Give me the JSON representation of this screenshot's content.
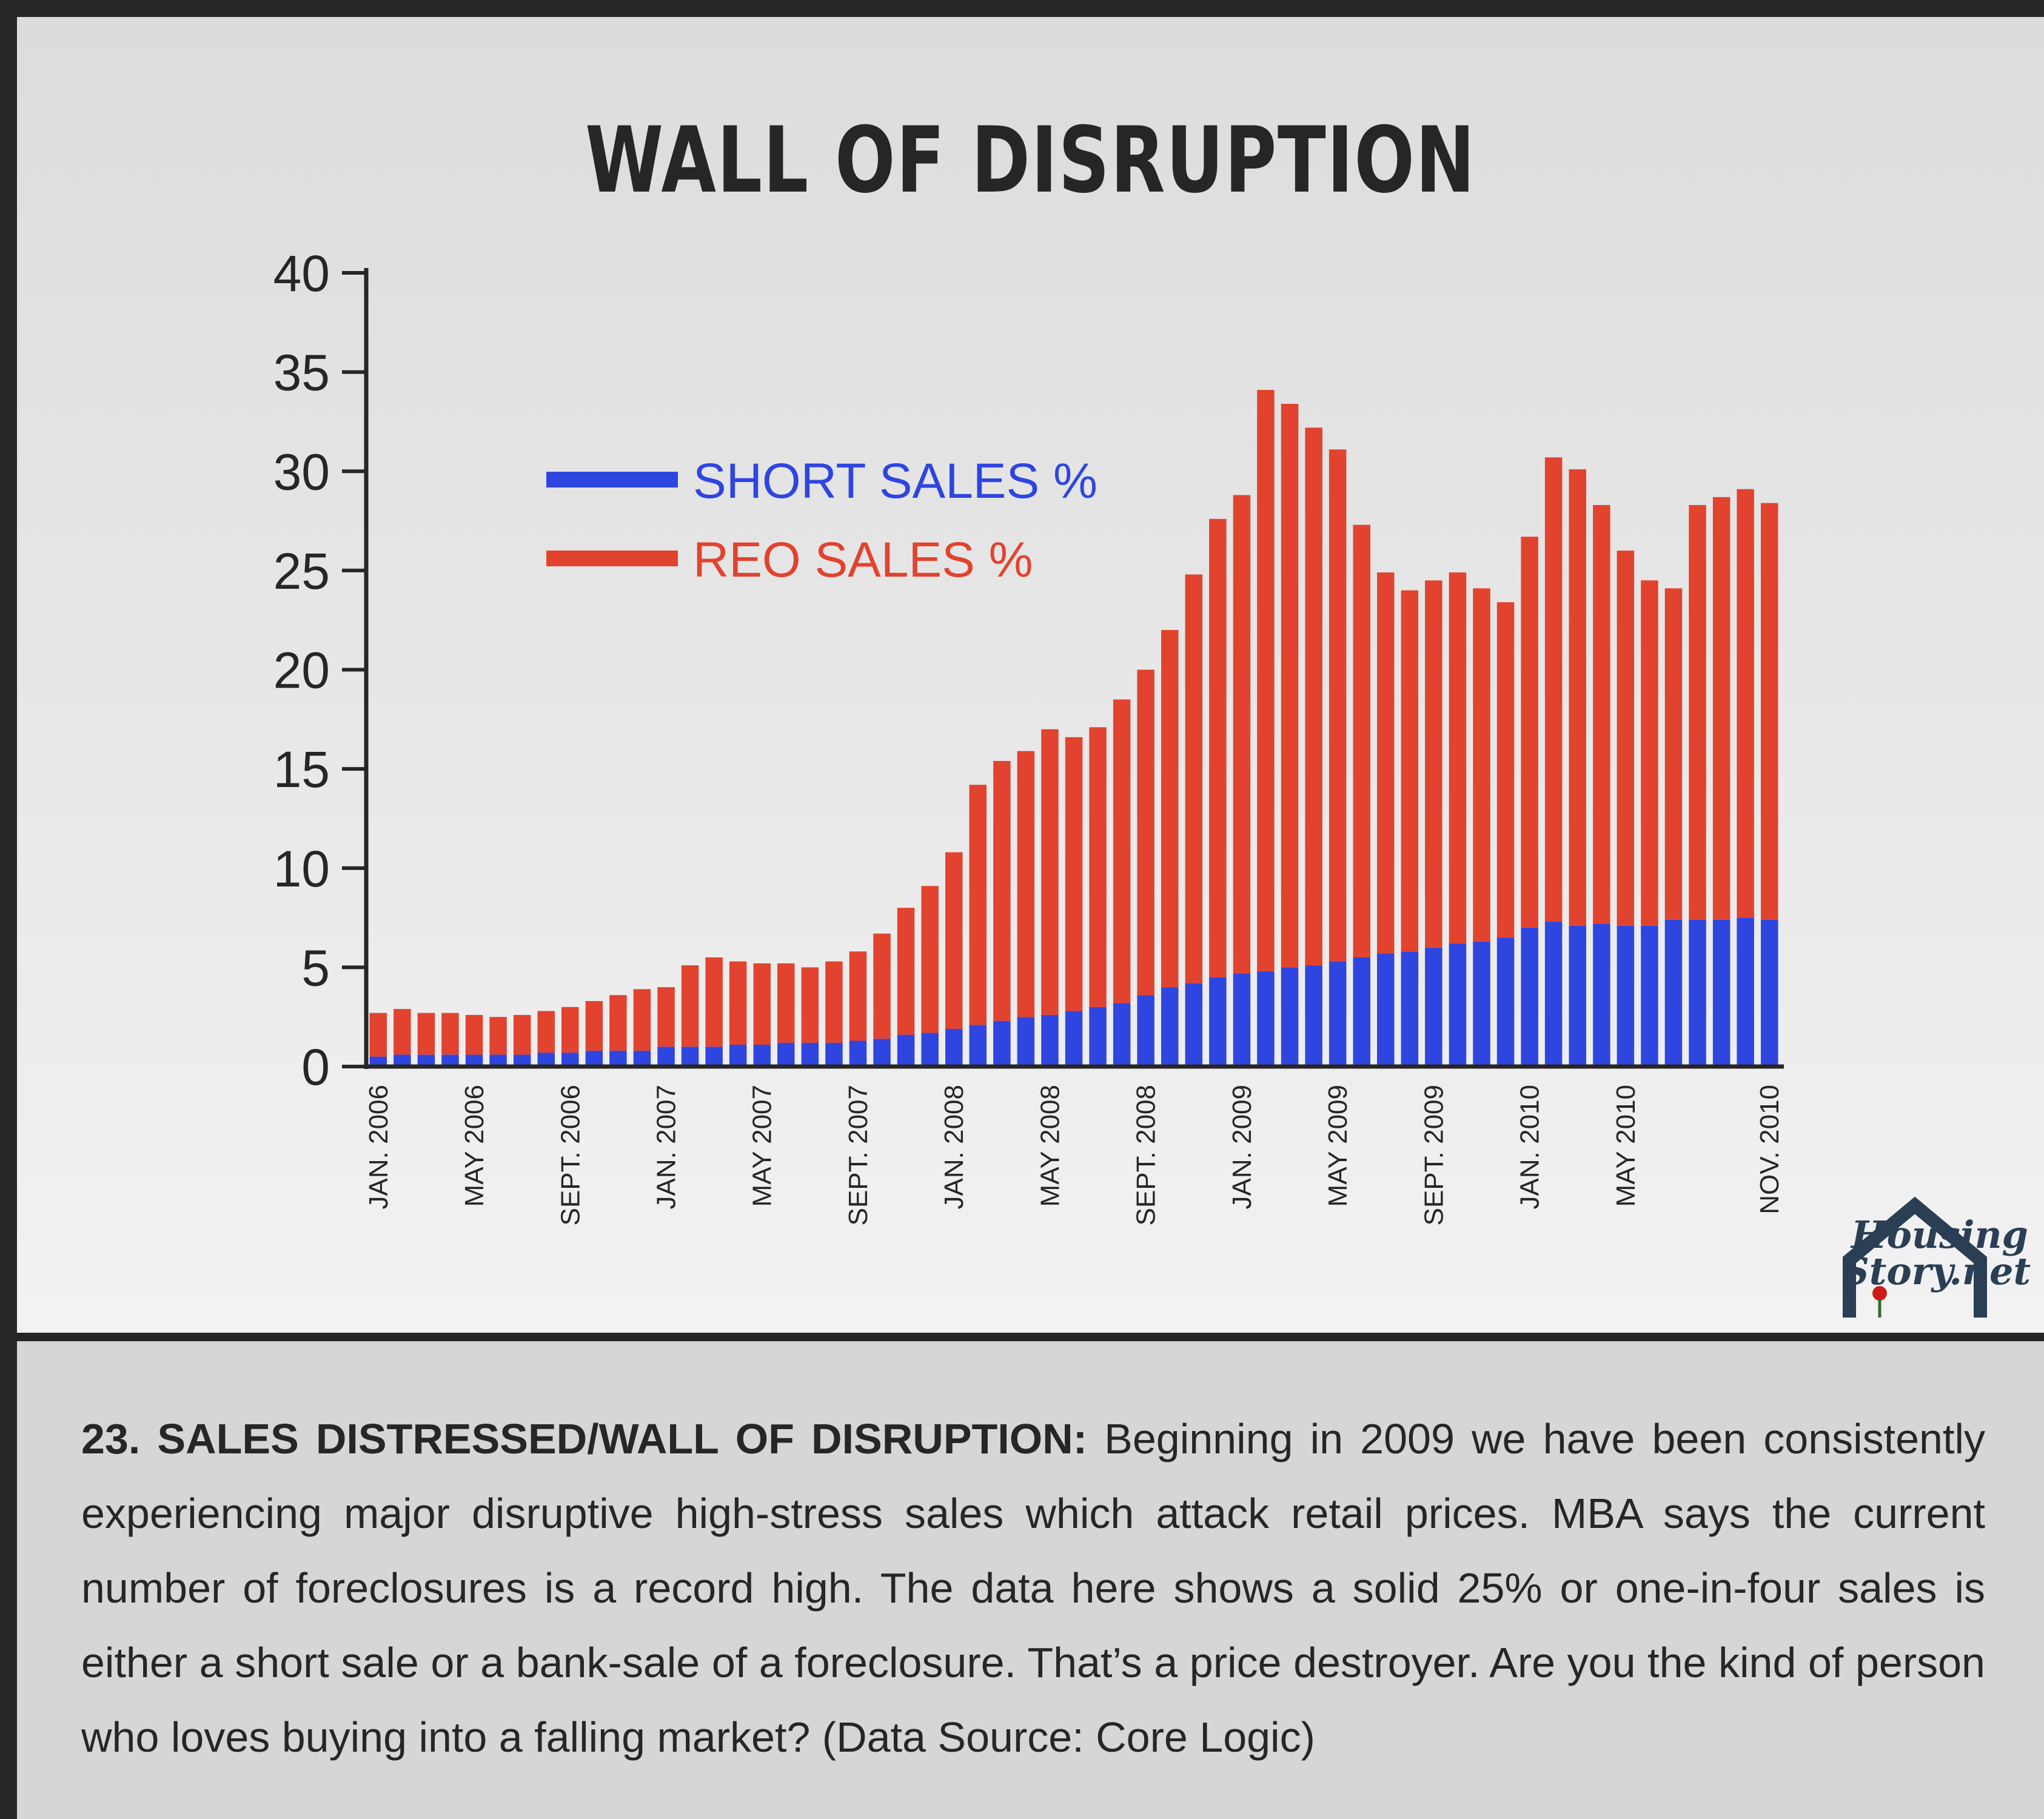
{
  "title": "WALL OF DISRUPTION",
  "caption": {
    "lead": "23. SALES DISTRESSED/WALL OF DISRUPTION:",
    "body": " Beginning in 2009 we have been consistently experiencing major disruptive high-stress sales which attack retail prices. MBA says the current number of foreclosures is a record high. The data here shows a solid 25% or one-in-four sales is either a short sale or a bank-sale of a foreclosure. That’s a price destroyer. Are you the kind of person who loves buying into a falling market? (Data Source: Core Logic)"
  },
  "logo": {
    "line1": "Housing",
    "line2": "Story.net"
  },
  "chart_data": {
    "type": "bar",
    "stacked": true,
    "title": "WALL OF DISRUPTION",
    "xlabel": "",
    "ylabel": "",
    "ylim": [
      0,
      40
    ],
    "yticks": [
      0,
      5,
      10,
      15,
      20,
      25,
      30,
      35,
      40
    ],
    "grid": false,
    "legend_position": "top-left",
    "categories": [
      "JAN. 2006",
      "FEB. 2006",
      "MAR. 2006",
      "APR. 2006",
      "MAY 2006",
      "JUN. 2006",
      "JUL. 2006",
      "AUG. 2006",
      "SEPT. 2006",
      "OCT. 2006",
      "NOV. 2006",
      "DEC. 2006",
      "JAN. 2007",
      "FEB. 2007",
      "MAR. 2007",
      "APR. 2007",
      "MAY 2007",
      "JUN. 2007",
      "JUL. 2007",
      "AUG. 2007",
      "SEPT. 2007",
      "OCT. 2007",
      "NOV. 2007",
      "DEC. 2007",
      "JAN. 2008",
      "FEB. 2008",
      "MAR. 2008",
      "APR. 2008",
      "MAY 2008",
      "JUN. 2008",
      "JUL. 2008",
      "AUG. 2008",
      "SEPT. 2008",
      "OCT. 2008",
      "NOV. 2008",
      "DEC. 2008",
      "JAN. 2009",
      "FEB. 2009",
      "MAR. 2009",
      "APR. 2009",
      "MAY 2009",
      "JUN. 2009",
      "JUL. 2009",
      "AUG. 2009",
      "SEPT. 2009",
      "OCT. 2009",
      "NOV. 2009",
      "DEC. 2009",
      "JAN. 2010",
      "FEB. 2010",
      "MAR. 2010",
      "APR. 2010",
      "MAY 2010",
      "JUN. 2010",
      "JUL. 2010",
      "AUG. 2010",
      "SEPT. 2010",
      "OCT. 2010",
      "NOV. 2010"
    ],
    "tick_labels": [
      {
        "index": 0,
        "label": "JAN. 2006"
      },
      {
        "index": 4,
        "label": "MAY 2006"
      },
      {
        "index": 8,
        "label": "SEPT. 2006"
      },
      {
        "index": 12,
        "label": "JAN. 2007"
      },
      {
        "index": 16,
        "label": "MAY 2007"
      },
      {
        "index": 20,
        "label": "SEPT. 2007"
      },
      {
        "index": 24,
        "label": "JAN. 2008"
      },
      {
        "index": 28,
        "label": "MAY 2008"
      },
      {
        "index": 32,
        "label": "SEPT. 2008"
      },
      {
        "index": 36,
        "label": "JAN. 2009"
      },
      {
        "index": 40,
        "label": "MAY 2009"
      },
      {
        "index": 44,
        "label": "SEPT. 2009"
      },
      {
        "index": 48,
        "label": "JAN. 2010"
      },
      {
        "index": 52,
        "label": "MAY 2010"
      },
      {
        "index": 58,
        "label": "NOV. 2010"
      }
    ],
    "series": [
      {
        "name": "SHORT SALES %",
        "color": "#2f45e0",
        "values": [
          0.5,
          0.6,
          0.6,
          0.6,
          0.6,
          0.6,
          0.6,
          0.7,
          0.7,
          0.8,
          0.8,
          0.8,
          1.0,
          1.0,
          1.0,
          1.1,
          1.1,
          1.2,
          1.2,
          1.2,
          1.3,
          1.4,
          1.6,
          1.7,
          1.9,
          2.1,
          2.3,
          2.5,
          2.6,
          2.8,
          3.0,
          3.2,
          3.6,
          4.0,
          4.2,
          4.5,
          4.7,
          4.8,
          5.0,
          5.1,
          5.3,
          5.5,
          5.7,
          5.8,
          6.0,
          6.2,
          6.3,
          6.5,
          7.0,
          7.3,
          7.1,
          7.2,
          7.1,
          7.1,
          7.4,
          7.4,
          7.4,
          7.5,
          7.4
        ]
      },
      {
        "name": "REO SALES %",
        "color": "#e2432e",
        "values": [
          2.2,
          2.3,
          2.1,
          2.1,
          2.0,
          1.9,
          2.0,
          2.1,
          2.3,
          2.5,
          2.8,
          3.1,
          3.0,
          4.1,
          4.5,
          4.2,
          4.1,
          4.0,
          3.8,
          4.1,
          4.5,
          5.3,
          6.4,
          7.4,
          8.9,
          12.1,
          13.1,
          13.4,
          14.4,
          13.8,
          14.1,
          15.3,
          16.4,
          18.0,
          20.6,
          23.1,
          24.1,
          29.3,
          28.4,
          27.1,
          25.8,
          21.8,
          19.2,
          18.2,
          18.5,
          18.7,
          17.8,
          16.9,
          19.7,
          23.4,
          23.0,
          21.1,
          18.9,
          17.4,
          16.7,
          20.9,
          21.3,
          21.6,
          21.0
        ]
      }
    ],
    "totals_note_excluded": true
  }
}
